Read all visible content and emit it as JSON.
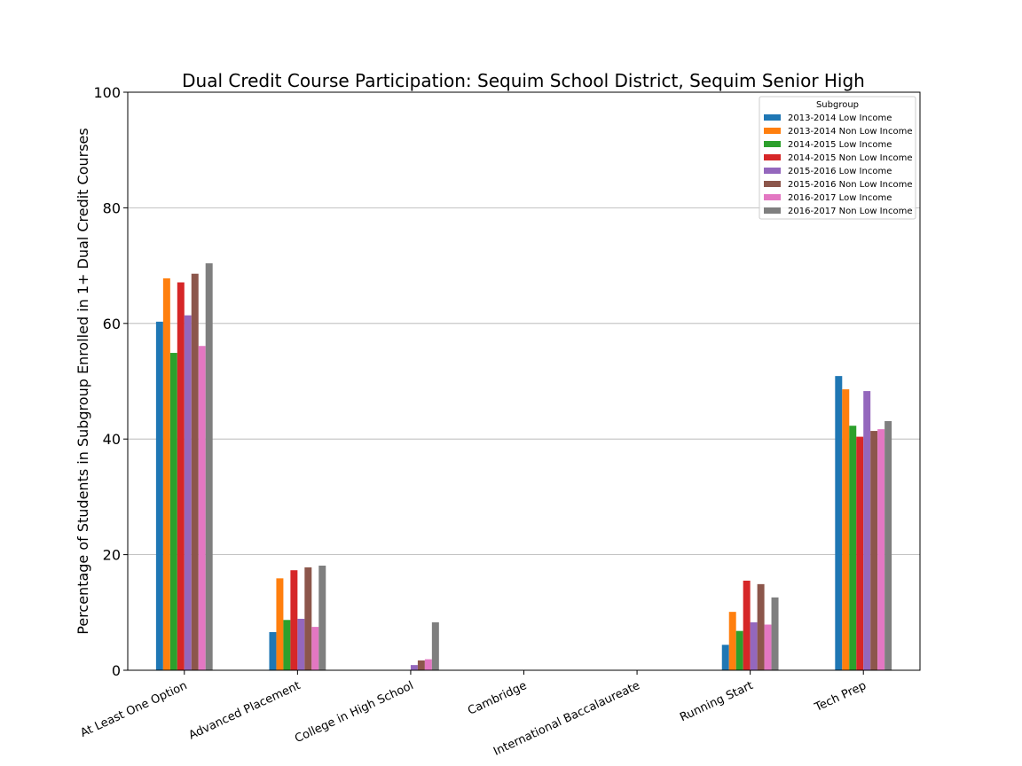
{
  "chart_data": {
    "type": "bar",
    "title": "Dual Credit Course Participation: Sequim School District, Sequim Senior High",
    "xlabel": "",
    "ylabel": "Percentage of Students in Subgroup Enrolled in 1+ Dual Credit Courses",
    "ylim": [
      0,
      100
    ],
    "yticks": [
      "0",
      "20",
      "40",
      "60",
      "80",
      "100"
    ],
    "grid": "horizontal",
    "legend": {
      "title": "Subgroup",
      "placement": "top-right"
    },
    "categories": [
      "At Least One Option",
      "Advanced Placement",
      "College in High School",
      "Cambridge",
      "International Baccalaureate",
      "Running Start",
      "Tech Prep"
    ],
    "series": [
      {
        "name": "2013-2014 Low Income",
        "color": "#1f77b4",
        "values": [
          60.3,
          6.6,
          0,
          0,
          0,
          4.4,
          50.9
        ]
      },
      {
        "name": "2013-2014 Non Low Income",
        "color": "#ff7f0e",
        "values": [
          67.8,
          15.9,
          0,
          0,
          0,
          10.1,
          48.6
        ]
      },
      {
        "name": "2014-2015 Low Income",
        "color": "#2ca02c",
        "values": [
          54.9,
          8.7,
          0,
          0,
          0,
          6.8,
          42.3
        ]
      },
      {
        "name": "2014-2015 Non Low Income",
        "color": "#d62728",
        "values": [
          67.1,
          17.3,
          0,
          0,
          0,
          15.5,
          40.4
        ]
      },
      {
        "name": "2015-2016 Low Income",
        "color": "#9467bd",
        "values": [
          61.4,
          8.9,
          0.9,
          0,
          0,
          8.3,
          48.3
        ]
      },
      {
        "name": "2015-2016 Non Low Income",
        "color": "#8c564b",
        "values": [
          68.6,
          17.8,
          1.7,
          0,
          0,
          14.9,
          41.4
        ]
      },
      {
        "name": "2016-2017 Low Income",
        "color": "#e377c2",
        "values": [
          56.1,
          7.5,
          1.9,
          0,
          0,
          7.9,
          41.7
        ]
      },
      {
        "name": "2016-2017 Non Low Income",
        "color": "#7f7f7f",
        "values": [
          70.4,
          18.1,
          8.3,
          0,
          0,
          12.6,
          43.1
        ]
      }
    ]
  }
}
